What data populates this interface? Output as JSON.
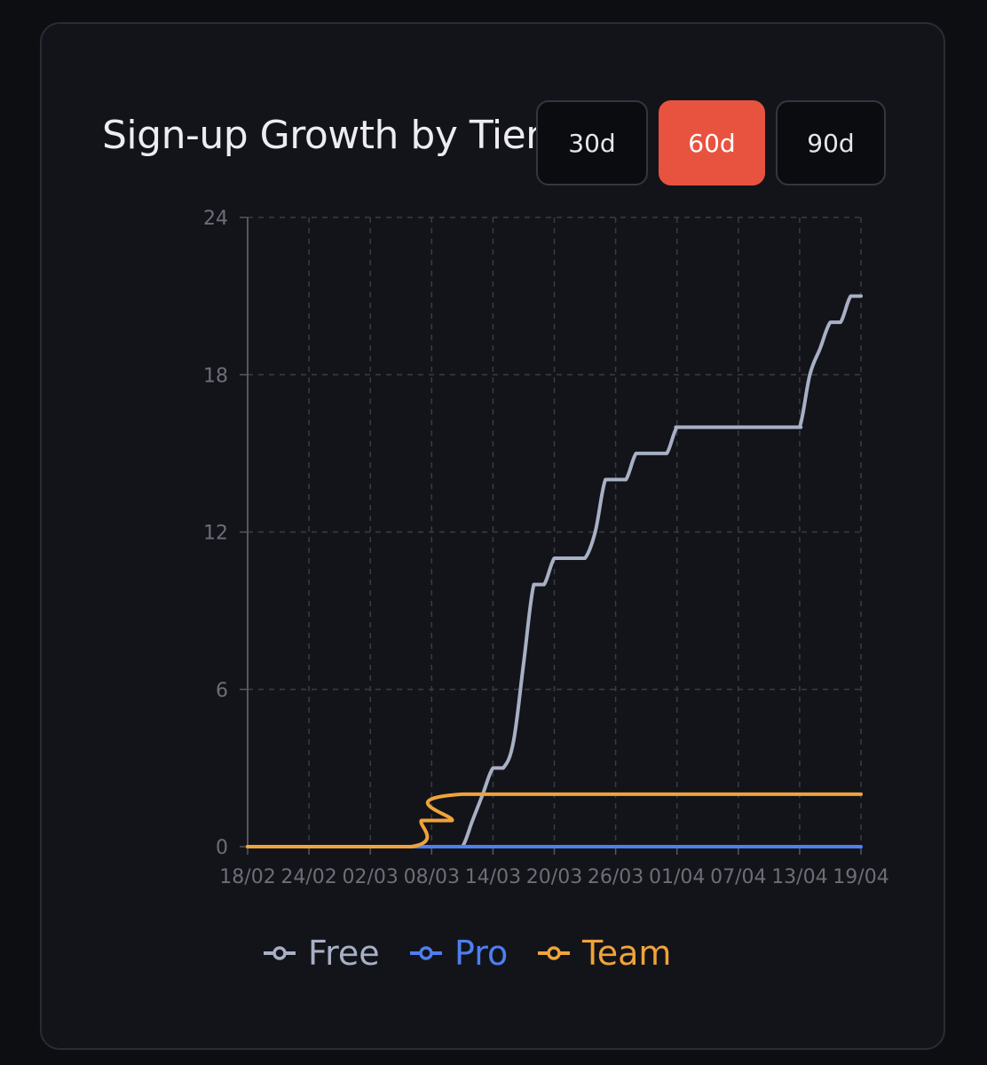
{
  "header": {
    "title": "Sign-up Growth by Tier"
  },
  "range_buttons": [
    {
      "label": "30d",
      "active": false
    },
    {
      "label": "60d",
      "active": true
    },
    {
      "label": "90d",
      "active": false
    }
  ],
  "colors": {
    "background": "#0d0e12",
    "card": "#13141a",
    "accent": "#e8533f",
    "grid": "#3a3c45",
    "axis": "#55575f",
    "tick_text": "#6c6e78"
  },
  "chart_data": {
    "type": "line",
    "title": "Sign-up Growth by Tier",
    "xlabel": "",
    "ylabel": "",
    "ylim": [
      0,
      24
    ],
    "xlim": [
      "2025-02-18",
      "2025-04-19"
    ],
    "y_ticks": [
      "0",
      "6",
      "12",
      "18",
      "24"
    ],
    "x_tick_labels": [
      "18/02",
      "24/02",
      "02/03",
      "08/03",
      "14/03",
      "20/03",
      "26/03",
      "01/04",
      "07/04",
      "13/04",
      "19/04"
    ],
    "x_tick_dates": [
      "2025-02-18",
      "2025-02-24",
      "2025-03-02",
      "2025-03-08",
      "2025-03-14",
      "2025-03-20",
      "2025-03-26",
      "2025-04-01",
      "2025-04-07",
      "2025-04-13",
      "2025-04-19"
    ],
    "grid": true,
    "legend_position": "bottom",
    "series": [
      {
        "name": "Free",
        "color": "#a7b0c4",
        "points": [
          [
            "2025-02-18",
            0
          ],
          [
            "2025-03-10",
            0
          ],
          [
            "2025-03-11",
            0
          ],
          [
            "2025-03-12",
            1
          ],
          [
            "2025-03-13",
            2
          ],
          [
            "2025-03-14",
            3
          ],
          [
            "2025-03-15",
            3
          ],
          [
            "2025-03-16",
            4
          ],
          [
            "2025-03-17",
            7
          ],
          [
            "2025-03-18",
            10
          ],
          [
            "2025-03-19",
            10
          ],
          [
            "2025-03-20",
            11
          ],
          [
            "2025-03-21",
            11
          ],
          [
            "2025-03-22",
            11
          ],
          [
            "2025-03-23",
            11
          ],
          [
            "2025-03-24",
            12
          ],
          [
            "2025-03-25",
            14
          ],
          [
            "2025-03-26",
            14
          ],
          [
            "2025-03-27",
            14
          ],
          [
            "2025-03-28",
            15
          ],
          [
            "2025-03-29",
            15
          ],
          [
            "2025-03-30",
            15
          ],
          [
            "2025-03-31",
            15
          ],
          [
            "2025-04-01",
            16
          ],
          [
            "2025-04-02",
            16
          ],
          [
            "2025-04-12",
            16
          ],
          [
            "2025-04-13",
            16
          ],
          [
            "2025-04-14",
            18
          ],
          [
            "2025-04-15",
            19
          ],
          [
            "2025-04-16",
            20
          ],
          [
            "2025-04-17",
            20
          ],
          [
            "2025-04-18",
            21
          ],
          [
            "2025-04-19",
            21
          ]
        ]
      },
      {
        "name": "Pro",
        "color": "#4d7ff0",
        "points": [
          [
            "2025-02-18",
            0
          ],
          [
            "2025-04-19",
            0
          ]
        ]
      },
      {
        "name": "Team",
        "color": "#f0a33a",
        "points": [
          [
            "2025-02-18",
            0
          ],
          [
            "2025-03-06",
            0
          ],
          [
            "2025-03-07",
            1
          ],
          [
            "2025-03-08",
            1
          ],
          [
            "2025-03-09",
            1
          ],
          [
            "2025-03-10",
            1
          ],
          [
            "2025-03-11",
            2
          ],
          [
            "2025-04-19",
            2
          ]
        ]
      }
    ]
  }
}
